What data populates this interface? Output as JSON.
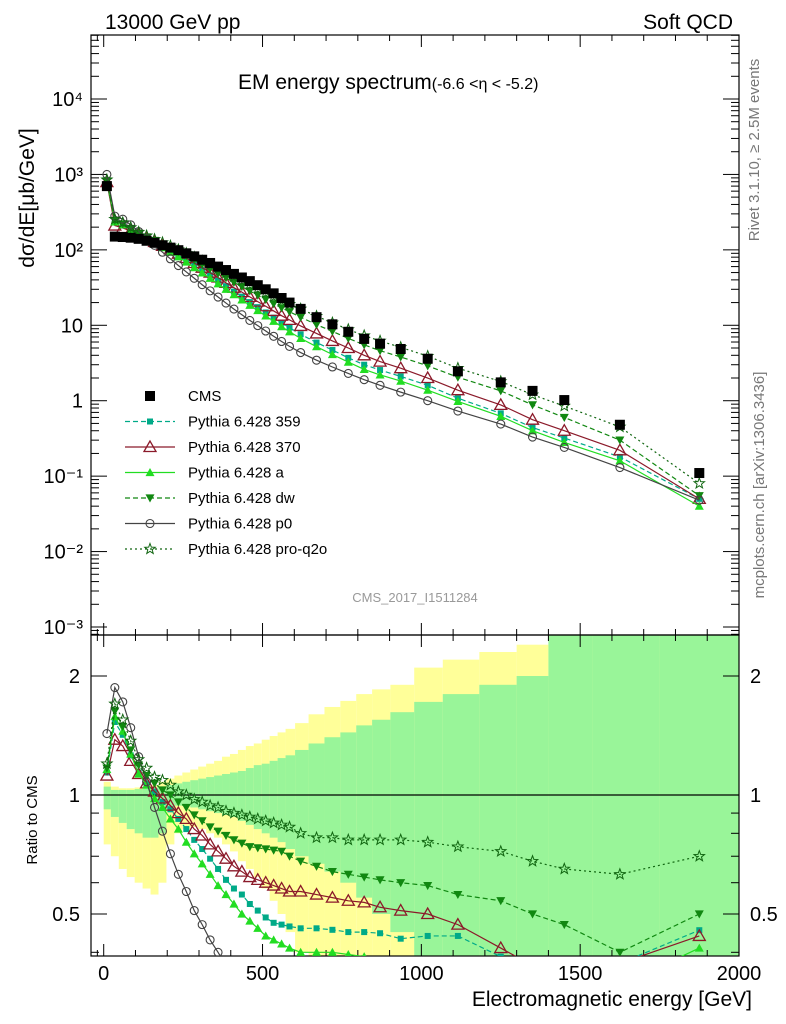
{
  "header": {
    "left": "13000 GeV pp",
    "right": "Soft QCD"
  },
  "side": {
    "rivet": "Rivet 3.1.10, ≥ 2.5M events",
    "mcplots": "mcplots.cern.ch [arXiv:1306.3436]"
  },
  "watermark": "CMS_2017_I1511284",
  "chart_data": {
    "type": "line",
    "title": "EM energy spectrum",
    "subtitle": "(-6.6 <η < -5.2)",
    "xlabel": "Electromagnetic energy [GeV]",
    "ylabel": "dσ/dE[μb/GeV]",
    "ratio_ylabel": "Ratio to CMS",
    "xlim": [
      -40,
      2000
    ],
    "ylim_log": [
      0.0008,
      80000
    ],
    "ratio_ylim": [
      0.35,
      2.28
    ],
    "x_ticks": [
      "0",
      "500",
      "1000",
      "1500",
      "2000"
    ],
    "y_ticks": [
      "10⁻³",
      "10⁻²",
      "10⁻¹",
      "1",
      "10",
      "10²",
      "10³",
      "10⁴"
    ],
    "ratio_ticks": [
      "0.5",
      "1",
      "2"
    ],
    "legend_position": "left",
    "data": {
      "name": "CMS",
      "color": "#000000",
      "x": [
        10,
        35,
        60,
        85,
        110,
        135,
        160,
        185,
        210,
        235,
        260,
        285,
        310,
        335,
        360,
        385,
        410,
        435,
        460,
        485,
        510,
        535,
        560,
        585,
        620,
        670,
        720,
        770,
        820,
        870,
        935,
        1020,
        1115,
        1250,
        1350,
        1450,
        1625,
        1875
      ],
      "y": [
        700,
        150,
        148,
        145,
        140,
        132,
        124,
        115,
        107,
        99,
        90,
        82,
        74,
        67,
        60,
        54,
        48,
        43,
        38.5,
        34,
        30,
        26.5,
        23,
        20,
        16.5,
        12.8,
        10.3,
        8.2,
        6.6,
        5.7,
        4.85,
        3.6,
        2.45,
        1.75,
        1.35,
        1.02,
        0.48,
        0.11
      ]
    },
    "series": [
      {
        "name": "Pythia 6.428 359",
        "color": "#00aa88",
        "dash": "5,3",
        "marker": "square",
        "y": [
          800,
          230,
          210,
          182,
          160,
          142,
          126,
          110,
          98,
          86,
          74,
          63,
          54,
          46,
          39,
          33,
          28,
          24,
          20.3,
          17.4,
          14.8,
          12.6,
          10.8,
          9.3,
          7.6,
          5.9,
          4.7,
          3.7,
          3.0,
          2.55,
          2.1,
          1.6,
          1.08,
          0.68,
          0.44,
          0.32,
          0.18,
          0.05
        ],
        "r": [
          1.14,
          1.53,
          1.42,
          1.26,
          1.14,
          1.07,
          1.02,
          0.96,
          0.92,
          0.87,
          0.82,
          0.77,
          0.73,
          0.69,
          0.65,
          0.61,
          0.58,
          0.56,
          0.53,
          0.51,
          0.49,
          0.475,
          0.47,
          0.465,
          0.46,
          0.46,
          0.456,
          0.45,
          0.45,
          0.447,
          0.433,
          0.44,
          0.44,
          0.39,
          0.33,
          0.31,
          0.375,
          0.455
        ]
      },
      {
        "name": "Pythia 6.428 370",
        "color": "#8b1a2a",
        "dash": "",
        "marker": "triangle-open",
        "y": [
          790,
          210,
          195,
          178,
          158,
          142,
          127,
          113,
          101,
          89,
          78,
          67,
          58,
          50,
          43,
          36.5,
          31.5,
          27.5,
          23.8,
          20.6,
          17.9,
          15.5,
          13.4,
          11.8,
          9.8,
          7.8,
          6.2,
          5.0,
          4.0,
          3.3,
          2.7,
          2.0,
          1.38,
          0.88,
          0.56,
          0.4,
          0.22,
          0.05
        ],
        "r": [
          1.12,
          1.38,
          1.33,
          1.22,
          1.13,
          1.07,
          1.02,
          0.98,
          0.94,
          0.9,
          0.87,
          0.82,
          0.79,
          0.75,
          0.72,
          0.69,
          0.66,
          0.64,
          0.62,
          0.61,
          0.6,
          0.59,
          0.58,
          0.57,
          0.57,
          0.56,
          0.55,
          0.54,
          0.535,
          0.52,
          0.51,
          0.5,
          0.47,
          0.41,
          0.37,
          0.34,
          0.375,
          0.44
        ]
      },
      {
        "name": "Pythia 6.428 a",
        "color": "#22dd22",
        "dash": "",
        "marker": "triangle-filled",
        "y": [
          820,
          235,
          215,
          185,
          158,
          140,
          122,
          107,
          93,
          81,
          69,
          58,
          49.5,
          42,
          35.5,
          30,
          25.5,
          21.7,
          18.4,
          15.7,
          13.3,
          11.3,
          9.6,
          8.2,
          6.7,
          5.2,
          4.1,
          3.25,
          2.6,
          2.2,
          1.82,
          1.38,
          0.98,
          0.62,
          0.4,
          0.28,
          0.16,
          0.04
        ],
        "r": [
          1.16,
          1.58,
          1.45,
          1.27,
          1.13,
          1.06,
          0.98,
          0.93,
          0.87,
          0.82,
          0.76,
          0.71,
          0.67,
          0.63,
          0.59,
          0.56,
          0.53,
          0.5,
          0.48,
          0.46,
          0.44,
          0.43,
          0.42,
          0.41,
          0.4,
          0.4,
          0.4,
          0.395,
          0.39,
          0.385,
          0.37,
          0.37,
          0.375,
          0.35,
          0.3,
          0.275,
          0.33,
          0.41
        ]
      },
      {
        "name": "Pythia 6.428 dw",
        "color": "#118811",
        "dash": "5,3",
        "marker": "triangle-down",
        "y": [
          820,
          245,
          220,
          192,
          166,
          148,
          133,
          119,
          107,
          95,
          84,
          73,
          64,
          56,
          48.5,
          42.5,
          37,
          32.5,
          28.5,
          25,
          22,
          19.3,
          17,
          15.1,
          12.8,
          10.2,
          8.3,
          6.7,
          5.5,
          4.6,
          3.8,
          2.9,
          2.05,
          1.35,
          0.88,
          0.6,
          0.3,
          0.055
        ],
        "r": [
          1.17,
          1.63,
          1.49,
          1.3,
          1.19,
          1.12,
          1.07,
          1.03,
          1.0,
          0.96,
          0.93,
          0.89,
          0.86,
          0.83,
          0.81,
          0.79,
          0.77,
          0.755,
          0.74,
          0.735,
          0.73,
          0.725,
          0.72,
          0.7,
          0.68,
          0.66,
          0.64,
          0.63,
          0.62,
          0.61,
          0.6,
          0.59,
          0.56,
          0.54,
          0.5,
          0.47,
          0.4,
          0.5
        ]
      },
      {
        "name": "Pythia 6.428 p0",
        "color": "#444444",
        "dash": "",
        "marker": "circle-open",
        "y": [
          1000,
          280,
          255,
          215,
          175,
          142,
          115,
          93,
          76,
          62,
          51,
          42,
          34.5,
          28.6,
          23.7,
          19.7,
          16.4,
          13.8,
          11.6,
          9.9,
          8.4,
          7.15,
          6.1,
          5.25,
          4.35,
          3.45,
          2.8,
          2.3,
          1.9,
          1.6,
          1.3,
          1.0,
          0.73,
          0.49,
          0.33,
          0.24,
          0.13,
          0.048
        ],
        "r": [
          1.43,
          1.87,
          1.72,
          1.48,
          1.25,
          1.08,
          0.93,
          0.81,
          0.71,
          0.63,
          0.57,
          0.51,
          0.47,
          0.43,
          0.4,
          0.37,
          0.34,
          0.32,
          0.3,
          0.29,
          0.28,
          0.27,
          0.265,
          0.26,
          0.26,
          0.27,
          0.27,
          0.28,
          0.29,
          0.28,
          0.27,
          0.28,
          0.3,
          0.28,
          0.25,
          0.24,
          0.27,
          0.355
        ]
      },
      {
        "name": "Pythia 6.428 pro-q2o",
        "color": "#116611",
        "dash": "2,3",
        "marker": "star",
        "y": [
          850,
          255,
          230,
          198,
          172,
          154,
          138,
          125,
          113,
          101,
          90,
          80,
          71,
          63,
          56,
          49.5,
          44,
          39,
          34.5,
          30.5,
          27,
          24,
          21.3,
          19,
          16.5,
          13.2,
          10.8,
          8.8,
          7.3,
          6.2,
          5.1,
          3.9,
          2.7,
          1.8,
          1.2,
          0.85,
          0.45,
          0.08
        ],
        "r": [
          1.2,
          1.7,
          1.55,
          1.37,
          1.23,
          1.17,
          1.11,
          1.09,
          1.06,
          1.02,
          1.0,
          0.975,
          0.96,
          0.94,
          0.93,
          0.91,
          0.9,
          0.89,
          0.88,
          0.87,
          0.86,
          0.85,
          0.84,
          0.83,
          0.8,
          0.78,
          0.78,
          0.77,
          0.77,
          0.77,
          0.77,
          0.76,
          0.74,
          0.72,
          0.68,
          0.65,
          0.63,
          0.7
        ]
      }
    ]
  }
}
